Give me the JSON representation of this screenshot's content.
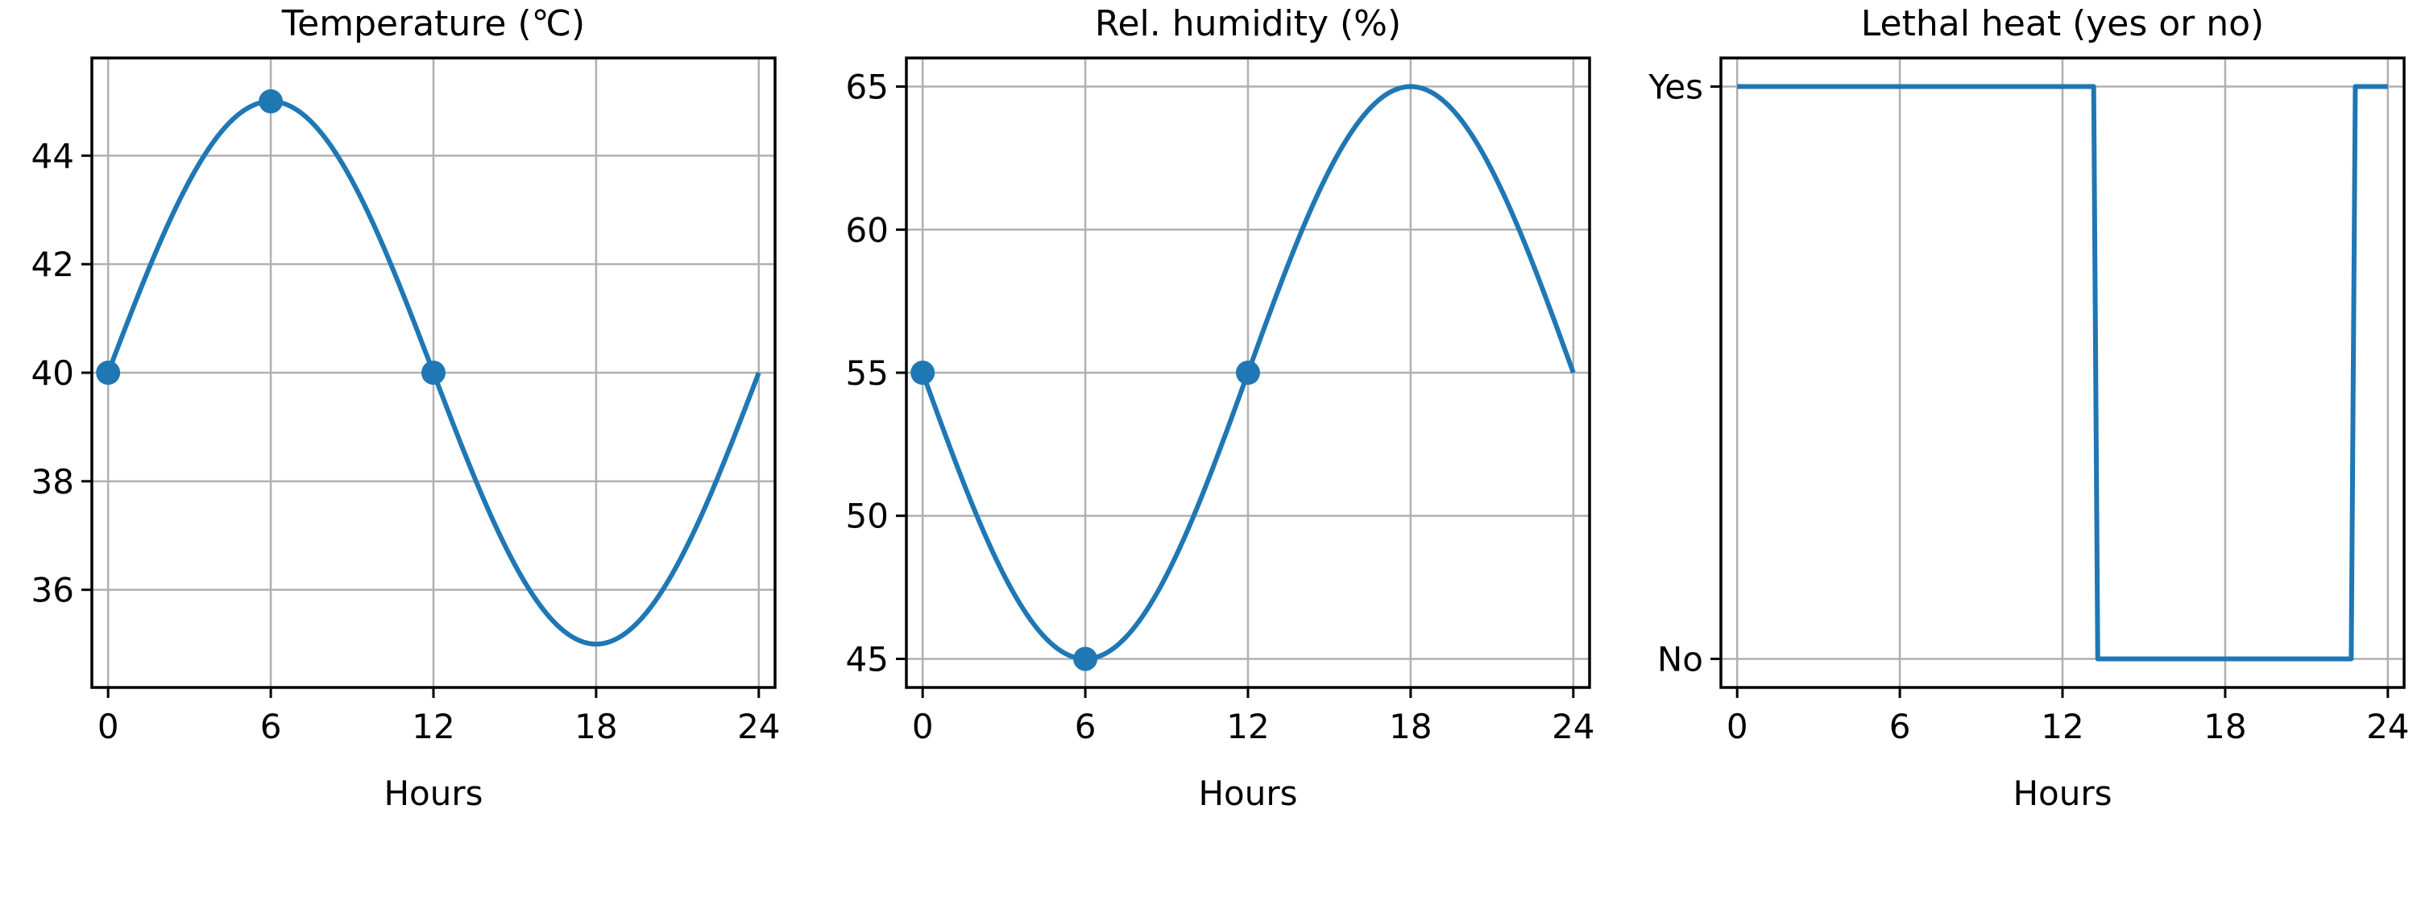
{
  "chart_data": [
    {
      "type": "line",
      "title": "Temperature (℃)",
      "xlabel": "Hours",
      "ylabel": "",
      "xlim": [
        -0.6,
        24.6
      ],
      "ylim": [
        34.2,
        45.8
      ],
      "xticks": [
        0,
        6,
        12,
        18,
        24
      ],
      "yticks": [
        36,
        38,
        40,
        42,
        44
      ],
      "grid": true,
      "color": "#1f77b4",
      "curve": {
        "formula": "40 + 5*sin(2*pi*t/24)",
        "x_range": [
          0,
          24
        ]
      },
      "markers": [
        {
          "x": 0,
          "y": 40
        },
        {
          "x": 6,
          "y": 45
        },
        {
          "x": 12,
          "y": 40
        }
      ]
    },
    {
      "type": "line",
      "title": "Rel. humidity (%)",
      "xlabel": "Hours",
      "ylabel": "",
      "xlim": [
        -0.6,
        24.6
      ],
      "ylim": [
        44,
        66
      ],
      "xticks": [
        0,
        6,
        12,
        18,
        24
      ],
      "yticks": [
        45,
        50,
        55,
        60,
        65
      ],
      "grid": true,
      "color": "#1f77b4",
      "curve": {
        "formula": "55 - 10*sin(2*pi*t/24)",
        "x_range": [
          0,
          24
        ]
      },
      "markers": [
        {
          "x": 0,
          "y": 55
        },
        {
          "x": 6,
          "y": 45
        },
        {
          "x": 12,
          "y": 55
        }
      ]
    },
    {
      "type": "line",
      "title": "Lethal heat (yes or no)",
      "xlabel": "Hours",
      "ylabel": "",
      "xlim": [
        -0.6,
        24.6
      ],
      "ylim": [
        -0.05,
        1.05
      ],
      "xticks": [
        0,
        6,
        12,
        18,
        24
      ],
      "yticks": [
        0,
        1
      ],
      "ytick_labels": [
        "No",
        "Yes"
      ],
      "grid": true,
      "color": "#1f77b4",
      "points": [
        {
          "x": 0,
          "y": 1
        },
        {
          "x": 13.15,
          "y": 1
        },
        {
          "x": 13.3,
          "y": 0
        },
        {
          "x": 22.65,
          "y": 0
        },
        {
          "x": 22.8,
          "y": 1
        },
        {
          "x": 24,
          "y": 1
        }
      ]
    }
  ]
}
